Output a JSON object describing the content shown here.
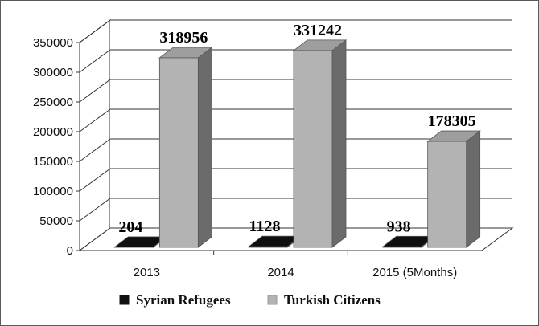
{
  "chart_data": {
    "type": "bar",
    "categories": [
      "2013",
      "2014",
      "2015  (5Months)"
    ],
    "series": [
      {
        "name": "Syrian Refugees",
        "values": [
          204,
          1128,
          938
        ],
        "color": "#111111"
      },
      {
        "name": "Turkish Citizens",
        "values": [
          318956,
          331242,
          178305
        ],
        "color": "#b3b3b3"
      }
    ],
    "ylim": [
      0,
      350000
    ],
    "yticks": [
      "0",
      "50000",
      "100000",
      "150000",
      "200000",
      "250000",
      "300000",
      "350000"
    ],
    "grid": true,
    "legend_position": "bottom",
    "style": "3d-column"
  }
}
